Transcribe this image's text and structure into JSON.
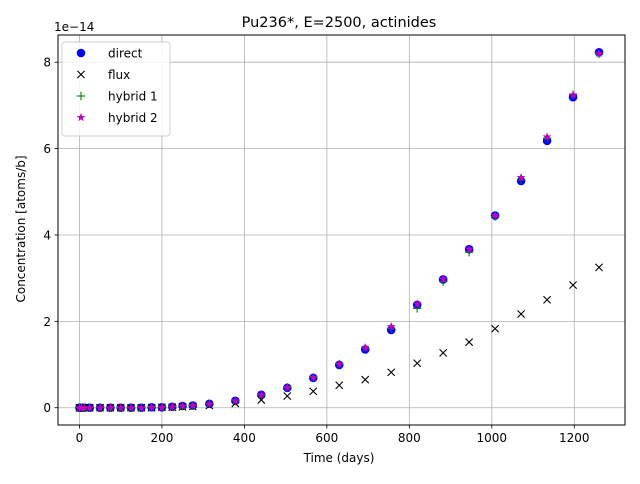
{
  "chart_data": {
    "type": "scatter",
    "title": "Pu236*, E=2500, actinides",
    "xlabel": "Time (days)",
    "ylabel": "Concentration [atoms/b]",
    "y_offset_label": "1e−14",
    "y_scale": 1e-14,
    "xlim": [
      -52,
      1323
    ],
    "ylim": [
      -0.4,
      8.63
    ],
    "xticks": [
      0,
      200,
      400,
      600,
      800,
      1000,
      1200
    ],
    "xtick_labels": [
      "0",
      "200",
      "400",
      "600",
      "800",
      "1000",
      "1200"
    ],
    "yticks": [
      0,
      2,
      4,
      6,
      8
    ],
    "ytick_labels": [
      "0",
      "2",
      "4",
      "6",
      "8"
    ],
    "grid": true,
    "legend_position": "upper-left",
    "x": [
      0,
      5,
      12,
      25,
      50,
      75,
      100,
      125,
      150,
      175,
      200,
      225,
      250,
      275,
      315,
      378,
      441,
      504,
      567,
      630,
      693,
      756,
      819,
      882,
      945,
      1008,
      1071,
      1134,
      1197,
      1260
    ],
    "series": [
      {
        "name": "direct",
        "marker": "circle",
        "color": "#0000ff",
        "values": [
          0,
          0,
          0,
          0,
          0,
          0,
          0,
          0,
          0,
          0.01,
          0.01,
          0.02,
          0.04,
          0.05,
          0.09,
          0.16,
          0.3,
          0.46,
          0.69,
          0.99,
          1.35,
          1.8,
          2.38,
          2.97,
          3.67,
          4.45,
          5.25,
          6.18,
          7.19,
          8.23
        ]
      },
      {
        "name": "flux",
        "marker": "x",
        "color": "#000000",
        "values": [
          0,
          0,
          0,
          0,
          0,
          0,
          0,
          0,
          0,
          0,
          0.01,
          0.01,
          0.02,
          0.03,
          0.05,
          0.1,
          0.18,
          0.27,
          0.38,
          0.52,
          0.65,
          0.82,
          1.03,
          1.27,
          1.52,
          1.83,
          2.17,
          2.5,
          2.84,
          3.25
        ]
      },
      {
        "name": "hybrid 1",
        "marker": "plus",
        "color": "#008000",
        "values": [
          0,
          0,
          0,
          0,
          0,
          0,
          0,
          0,
          0,
          0.01,
          0.01,
          0.02,
          0.04,
          0.05,
          0.09,
          0.16,
          0.3,
          0.47,
          0.7,
          1.01,
          1.38,
          1.84,
          2.3,
          2.92,
          3.6,
          4.43,
          5.28,
          6.24,
          7.25,
          8.19
        ]
      },
      {
        "name": "hybrid 2",
        "marker": "star",
        "color": "#bf00bf",
        "values": [
          0,
          0,
          0,
          0,
          0,
          0,
          0,
          0,
          0,
          0.01,
          0.01,
          0.02,
          0.04,
          0.05,
          0.09,
          0.16,
          0.3,
          0.47,
          0.7,
          1.01,
          1.39,
          1.88,
          2.4,
          2.98,
          3.67,
          4.45,
          5.33,
          6.27,
          7.24,
          8.2
        ]
      }
    ]
  }
}
